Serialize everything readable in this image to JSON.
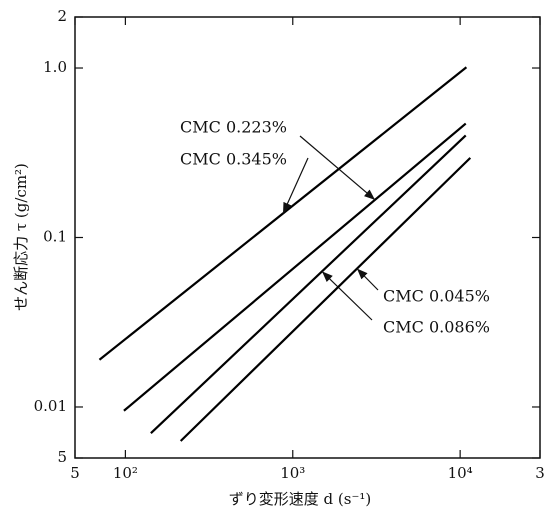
{
  "chart_data": {
    "type": "line",
    "x_label": "ずり変形速度 d (s⁻¹)",
    "y_label": "せん断応力 τ (g/cm²)",
    "xscale": "log",
    "yscale": "log",
    "xlim": [
      50,
      30000
    ],
    "xticks": [
      {
        "value": 50,
        "label": "5"
      },
      {
        "value": 100,
        "label": "10²"
      },
      {
        "value": 1000,
        "label": "10³"
      },
      {
        "value": 10000,
        "label": "10⁴"
      },
      {
        "value": 30000,
        "label": "3"
      }
    ],
    "ylim": [
      0.005,
      2
    ],
    "yticks": [
      {
        "value": 0.005,
        "label": "5"
      },
      0.01,
      0.1,
      {
        "value": 1,
        "label": "1.0"
      },
      2
    ],
    "series": [
      {
        "name": "CMC 0.345%",
        "color": "#000000",
        "x": [
          70,
          10900
        ],
        "values": [
          0.019,
          1.01
        ]
      },
      {
        "name": "CMC 0.223%",
        "color": "#000000",
        "x": [
          98,
          10800
        ],
        "values": [
          0.0095,
          0.47
        ]
      },
      {
        "name": "CMC 0.086%",
        "color": "#000000",
        "x": [
          142,
          10800
        ],
        "values": [
          0.007,
          0.4
        ]
      },
      {
        "name": "CMC 0.045%",
        "color": "#000000",
        "x": [
          214,
          11500
        ],
        "values": [
          0.0063,
          0.295
        ]
      }
    ]
  }
}
